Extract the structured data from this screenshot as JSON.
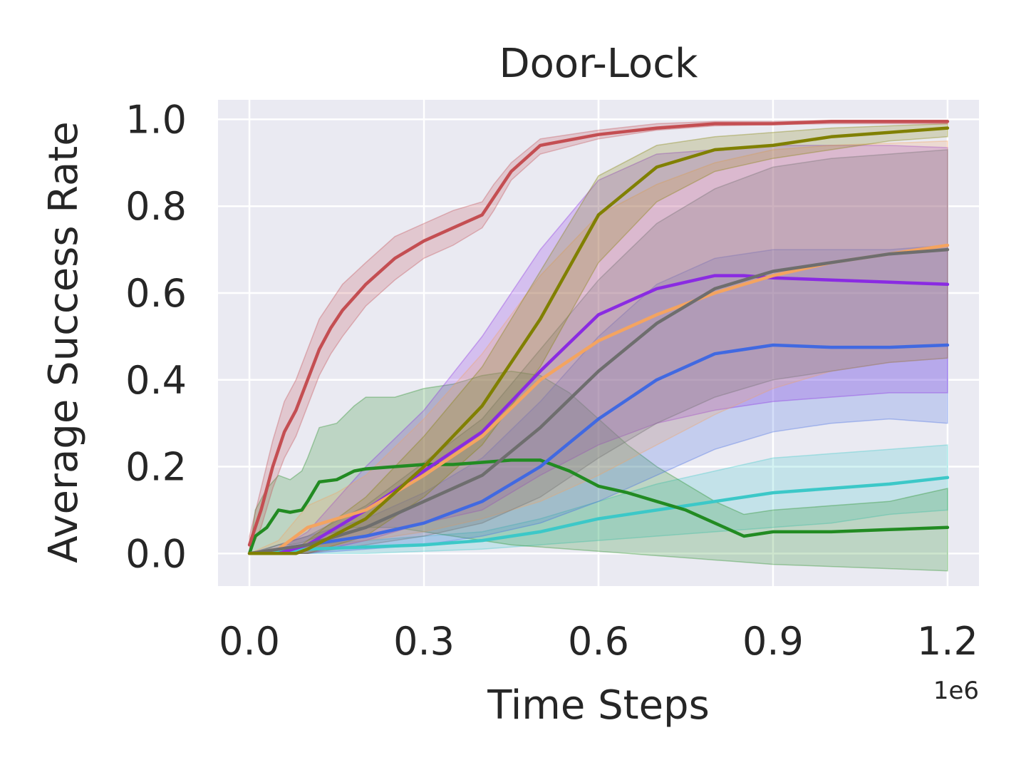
{
  "chart_data": {
    "type": "line",
    "title": "Door-Lock",
    "xlabel": "Time Steps",
    "ylabel": "Average Success Rate",
    "x_offset_label": "1e6",
    "xlim": [
      -0.054,
      1.254
    ],
    "ylim": [
      -0.075,
      1.045
    ],
    "xticks": [
      0.0,
      0.3,
      0.6,
      0.9,
      1.2
    ],
    "xtick_labels": [
      "0.0",
      "0.3",
      "0.6",
      "0.9",
      "1.2"
    ],
    "yticks": [
      0.0,
      0.2,
      0.4,
      0.6,
      0.8,
      1.0
    ],
    "ytick_labels": [
      "0.0",
      "0.2",
      "0.4",
      "0.6",
      "0.8",
      "1.0"
    ],
    "grid": true,
    "legend": "none",
    "background_color": "#eaeaf2",
    "series": [
      {
        "color": "#3cc8c8",
        "x": [
          0.0,
          0.1,
          0.2,
          0.3,
          0.4,
          0.5,
          0.6,
          0.7,
          0.8,
          0.9,
          1.0,
          1.1,
          1.2
        ],
        "mean": [
          0.0,
          0.01,
          0.015,
          0.02,
          0.03,
          0.05,
          0.08,
          0.1,
          0.12,
          0.14,
          0.15,
          0.16,
          0.175
        ],
        "lower": [
          0.0,
          0.0,
          0.0,
          0.005,
          0.01,
          0.02,
          0.03,
          0.04,
          0.05,
          0.06,
          0.07,
          0.09,
          0.1
        ],
        "upper": [
          0.0,
          0.02,
          0.03,
          0.04,
          0.05,
          0.08,
          0.12,
          0.16,
          0.19,
          0.22,
          0.23,
          0.24,
          0.25
        ]
      },
      {
        "color": "#228b22",
        "x": [
          0.0,
          0.01,
          0.03,
          0.05,
          0.07,
          0.09,
          0.1,
          0.12,
          0.15,
          0.18,
          0.2,
          0.25,
          0.3,
          0.35,
          0.4,
          0.45,
          0.5,
          0.55,
          0.6,
          0.65,
          0.7,
          0.75,
          0.8,
          0.85,
          0.9,
          1.0,
          1.1,
          1.2
        ],
        "mean": [
          0.0,
          0.04,
          0.06,
          0.1,
          0.095,
          0.1,
          0.12,
          0.165,
          0.17,
          0.19,
          0.195,
          0.2,
          0.205,
          0.205,
          0.21,
          0.215,
          0.215,
          0.19,
          0.155,
          0.14,
          0.12,
          0.1,
          0.07,
          0.04,
          0.05,
          0.05,
          0.055,
          0.06
        ],
        "lower": [
          0.0,
          0.0,
          0.01,
          0.02,
          0.02,
          0.025,
          0.03,
          0.04,
          0.05,
          0.06,
          0.06,
          0.06,
          0.05,
          0.04,
          0.03,
          0.02,
          0.015,
          0.01,
          0.005,
          0.0,
          -0.005,
          -0.01,
          -0.015,
          -0.02,
          -0.025,
          -0.03,
          -0.035,
          -0.04
        ],
        "upper": [
          0.0,
          0.1,
          0.15,
          0.18,
          0.17,
          0.19,
          0.22,
          0.29,
          0.3,
          0.34,
          0.36,
          0.36,
          0.38,
          0.39,
          0.41,
          0.42,
          0.41,
          0.37,
          0.31,
          0.25,
          0.2,
          0.16,
          0.12,
          0.09,
          0.1,
          0.11,
          0.12,
          0.15
        ]
      },
      {
        "color": "#4169e1",
        "x": [
          0.0,
          0.1,
          0.2,
          0.3,
          0.4,
          0.5,
          0.6,
          0.7,
          0.8,
          0.9,
          1.0,
          1.1,
          1.2
        ],
        "mean": [
          0.0,
          0.02,
          0.04,
          0.07,
          0.12,
          0.2,
          0.31,
          0.4,
          0.46,
          0.48,
          0.475,
          0.475,
          0.48
        ],
        "lower": [
          0.0,
          0.0,
          0.01,
          0.02,
          0.04,
          0.07,
          0.12,
          0.18,
          0.24,
          0.28,
          0.3,
          0.31,
          0.3
        ],
        "upper": [
          0.0,
          0.04,
          0.08,
          0.14,
          0.22,
          0.35,
          0.5,
          0.62,
          0.68,
          0.7,
          0.7,
          0.7,
          0.71
        ]
      },
      {
        "color": "#8a2be2",
        "x": [
          0.0,
          0.05,
          0.1,
          0.2,
          0.3,
          0.4,
          0.5,
          0.6,
          0.7,
          0.8,
          0.85,
          0.9,
          1.0,
          1.1,
          1.2
        ],
        "mean": [
          0.0,
          0.0,
          0.02,
          0.1,
          0.19,
          0.28,
          0.42,
          0.55,
          0.61,
          0.64,
          0.64,
          0.635,
          0.63,
          0.625,
          0.62
        ],
        "lower": [
          0.0,
          0.0,
          0.0,
          0.03,
          0.07,
          0.1,
          0.18,
          0.25,
          0.3,
          0.33,
          0.34,
          0.35,
          0.36,
          0.37,
          0.37
        ],
        "upper": [
          0.0,
          0.01,
          0.05,
          0.2,
          0.33,
          0.5,
          0.7,
          0.86,
          0.92,
          0.93,
          0.935,
          0.94,
          0.94,
          0.94,
          0.935
        ]
      },
      {
        "color": "#f4a460",
        "x": [
          0.0,
          0.05,
          0.1,
          0.15,
          0.2,
          0.3,
          0.4,
          0.5,
          0.6,
          0.7,
          0.8,
          0.9,
          1.0,
          1.1,
          1.2
        ],
        "mean": [
          0.0,
          0.01,
          0.06,
          0.08,
          0.1,
          0.18,
          0.27,
          0.4,
          0.49,
          0.55,
          0.6,
          0.64,
          0.67,
          0.69,
          0.71
        ],
        "lower": [
          0.0,
          0.0,
          0.01,
          0.02,
          0.03,
          0.05,
          0.08,
          0.12,
          0.18,
          0.25,
          0.32,
          0.38,
          0.42,
          0.44,
          0.45
        ],
        "upper": [
          0.0,
          0.03,
          0.11,
          0.14,
          0.18,
          0.31,
          0.46,
          0.64,
          0.78,
          0.85,
          0.9,
          0.93,
          0.94,
          0.945,
          0.95
        ]
      },
      {
        "color": "#6e6e6e",
        "x": [
          0.0,
          0.1,
          0.2,
          0.3,
          0.4,
          0.5,
          0.6,
          0.7,
          0.8,
          0.9,
          1.0,
          1.1,
          1.2
        ],
        "mean": [
          0.0,
          0.02,
          0.06,
          0.12,
          0.18,
          0.29,
          0.42,
          0.53,
          0.61,
          0.65,
          0.67,
          0.69,
          0.7
        ],
        "lower": [
          0.0,
          0.0,
          0.02,
          0.04,
          0.07,
          0.13,
          0.22,
          0.3,
          0.36,
          0.4,
          0.42,
          0.44,
          0.45
        ],
        "upper": [
          0.0,
          0.04,
          0.11,
          0.21,
          0.31,
          0.47,
          0.63,
          0.76,
          0.84,
          0.89,
          0.91,
          0.92,
          0.93
        ]
      },
      {
        "color": "#808000",
        "x": [
          0.0,
          0.08,
          0.1,
          0.2,
          0.3,
          0.4,
          0.5,
          0.6,
          0.7,
          0.8,
          0.9,
          1.0,
          1.1,
          1.2
        ],
        "mean": [
          0.0,
          0.0,
          0.01,
          0.08,
          0.2,
          0.34,
          0.54,
          0.78,
          0.89,
          0.93,
          0.94,
          0.96,
          0.97,
          0.98
        ],
        "lower": [
          0.0,
          0.0,
          0.0,
          0.04,
          0.13,
          0.25,
          0.43,
          0.67,
          0.81,
          0.88,
          0.91,
          0.93,
          0.95,
          0.96
        ],
        "upper": [
          0.0,
          0.01,
          0.03,
          0.13,
          0.27,
          0.43,
          0.65,
          0.87,
          0.94,
          0.96,
          0.97,
          0.98,
          0.985,
          0.99
        ]
      },
      {
        "color": "#c44e52",
        "x": [
          0.0,
          0.02,
          0.04,
          0.06,
          0.08,
          0.1,
          0.12,
          0.14,
          0.16,
          0.2,
          0.25,
          0.3,
          0.35,
          0.4,
          0.42,
          0.45,
          0.5,
          0.6,
          0.7,
          0.8,
          0.9,
          1.0,
          1.1,
          1.2
        ],
        "mean": [
          0.02,
          0.1,
          0.2,
          0.28,
          0.33,
          0.4,
          0.47,
          0.52,
          0.56,
          0.62,
          0.68,
          0.72,
          0.75,
          0.78,
          0.82,
          0.88,
          0.94,
          0.965,
          0.98,
          0.99,
          0.99,
          0.995,
          0.995,
          0.995
        ],
        "lower": [
          0.0,
          0.06,
          0.15,
          0.22,
          0.27,
          0.34,
          0.41,
          0.46,
          0.5,
          0.57,
          0.63,
          0.68,
          0.71,
          0.75,
          0.79,
          0.86,
          0.92,
          0.955,
          0.975,
          0.985,
          0.988,
          0.99,
          0.99,
          0.99
        ],
        "upper": [
          0.04,
          0.15,
          0.26,
          0.35,
          0.4,
          0.47,
          0.54,
          0.58,
          0.62,
          0.67,
          0.73,
          0.76,
          0.79,
          0.81,
          0.85,
          0.9,
          0.955,
          0.975,
          0.99,
          0.995,
          0.995,
          0.998,
          0.998,
          0.998
        ]
      }
    ]
  }
}
